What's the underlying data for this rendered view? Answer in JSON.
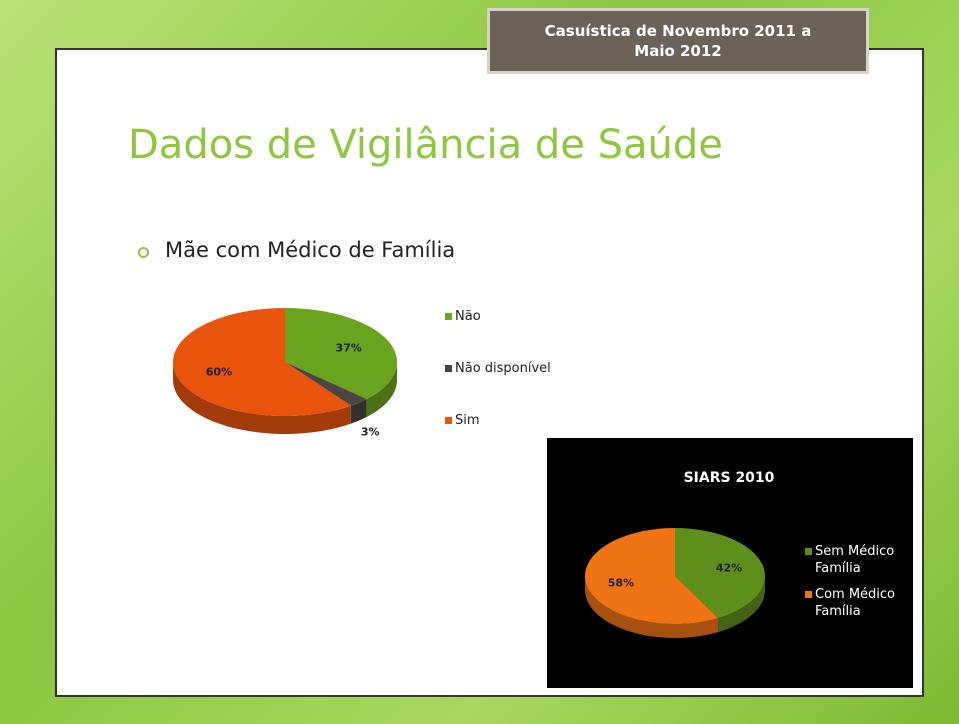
{
  "slide": {
    "badge": "Casuística de Novembro 2011 a Maio 2012",
    "title": "Dados de Vigilância de Saúde",
    "bullet": "Mãe com Médico de Família"
  },
  "chart_data": [
    {
      "type": "pie",
      "categories": [
        "Não",
        "Não disponível",
        "Sim"
      ],
      "values": [
        37,
        3,
        60
      ],
      "value_labels": [
        "37%",
        "3%",
        "60%"
      ],
      "colors": [
        "#6aa31e",
        "#4a4540",
        "#e8540c"
      ]
    },
    {
      "type": "pie",
      "title": "SIARS 2010",
      "categories": [
        "Sem Médico Família",
        "Com Médico Família"
      ],
      "values": [
        42,
        58
      ],
      "value_labels": [
        "42%",
        "58%"
      ],
      "colors": [
        "#5e8f1c",
        "#f07414"
      ]
    }
  ]
}
